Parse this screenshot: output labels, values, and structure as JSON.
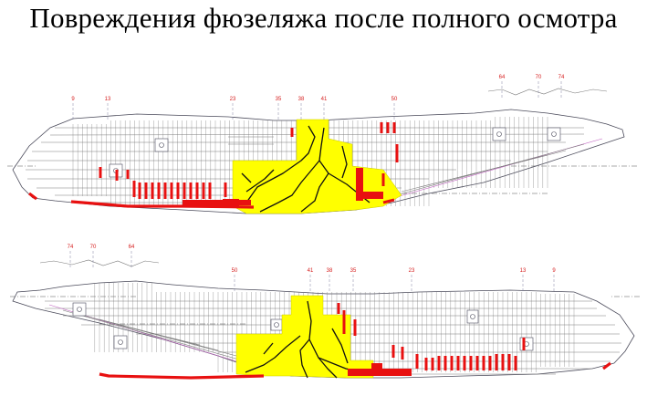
{
  "title": "Повреждения фюзеляжа после полного осмотра",
  "colors": {
    "outline": "#4a4a5a",
    "structure": "#7a7a7a",
    "damage_area": "#ffff00",
    "crack": "#111111",
    "repair_marks": "#e81010",
    "frame_labels": "#d62020",
    "axis": "#555555"
  },
  "views": [
    {
      "frames": [
        "9",
        "13",
        "23",
        "35",
        "38",
        "41",
        "50",
        "64",
        "70",
        "74"
      ]
    },
    {
      "frames": [
        "74",
        "70",
        "64",
        "50",
        "41",
        "38",
        "35",
        "23",
        "13",
        "9"
      ]
    }
  ]
}
